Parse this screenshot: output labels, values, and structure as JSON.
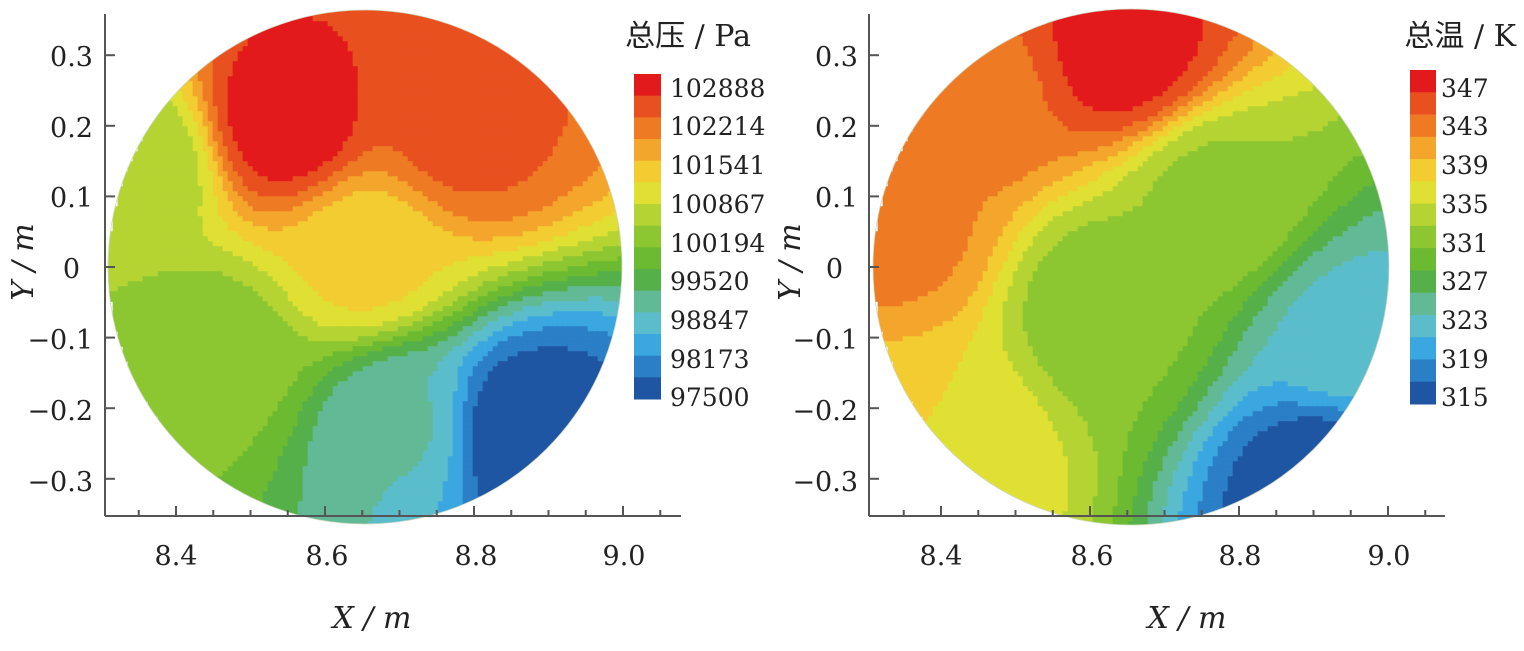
{
  "chart_data": [
    {
      "type": "heatmap",
      "subtype": "filled-contour on circular section",
      "colorbar": {
        "title": "总压 / Pa",
        "ticks": [
          102888,
          102214,
          101541,
          100867,
          100194,
          99520,
          98847,
          98173,
          97500
        ],
        "min": 97500,
        "max": 103000,
        "colors_high_to_low": [
          "#e31a1c",
          "#e8511f",
          "#ef7a24",
          "#f4a52b",
          "#f2cc31",
          "#dfe033",
          "#b5d433",
          "#8cc631",
          "#6cba31",
          "#56b04a",
          "#62b996",
          "#5bbdcc",
          "#3aa7e1",
          "#2a7fc7",
          "#1f56a3"
        ]
      },
      "xlabel": "X / m",
      "ylabel": "Y / m",
      "xticks": [
        "8.4",
        "8.6",
        "8.8",
        "9.0"
      ],
      "yticks": [
        "0.3",
        "0.2",
        "0.1",
        "0",
        "−0.1",
        "−0.2",
        "−0.3"
      ],
      "xlim": [
        8.3,
        9.07
      ],
      "ylim": [
        -0.35,
        0.36
      ],
      "domain_circle": {
        "center": [
          8.665,
          0.0
        ],
        "radius": 0.35
      },
      "features": [
        {
          "kind": "high",
          "x": 8.54,
          "y": 0.21,
          "value": 102888
        },
        {
          "kind": "high-band",
          "x": 8.78,
          "y": 0.2,
          "value": 102400
        },
        {
          "kind": "low",
          "x": 8.86,
          "y": -0.23,
          "value": 97500
        },
        {
          "kind": "mid-low",
          "x": 8.7,
          "y": -0.22,
          "value": 99000
        },
        {
          "kind": "mid",
          "x": 8.45,
          "y": -0.12,
          "value": 100200
        },
        {
          "kind": "band",
          "x": 8.65,
          "y": 0.02,
          "value": 101300
        },
        {
          "kind": "edge-low",
          "x": 8.35,
          "y": 0.15,
          "value": 100500
        }
      ],
      "grid": false
    },
    {
      "type": "heatmap",
      "subtype": "filled-contour on circular section",
      "colorbar": {
        "title": "总温 / K",
        "ticks": [
          347,
          343,
          339,
          335,
          331,
          327,
          323,
          319,
          315
        ],
        "min": 315,
        "max": 348,
        "colors_high_to_low": [
          "#e31a1c",
          "#e8511f",
          "#ef7a24",
          "#f4a52b",
          "#f2cc31",
          "#dfe033",
          "#b5d433",
          "#8cc631",
          "#6cba31",
          "#56b04a",
          "#62b996",
          "#5bbdcc",
          "#3aa7e1",
          "#2a7fc7",
          "#1f56a3"
        ]
      },
      "xlabel": "X / m",
      "ylabel": "Y / m",
      "xticks": [
        "8.4",
        "8.6",
        "8.8",
        "9.0"
      ],
      "yticks": [
        "0.3",
        "0.2",
        "0.1",
        "0",
        "−0.1",
        "−0.2",
        "−0.3"
      ],
      "xlim": [
        8.3,
        9.07
      ],
      "ylim": [
        -0.35,
        0.36
      ],
      "domain_circle": {
        "center": [
          8.665,
          0.0
        ],
        "radius": 0.35
      },
      "features": [
        {
          "kind": "high",
          "x": 8.64,
          "y": 0.31,
          "value": 347
        },
        {
          "kind": "high-band",
          "x": 8.45,
          "y": 0.25,
          "value": 343
        },
        {
          "kind": "high-edge",
          "x": 8.34,
          "y": 0.06,
          "value": 342
        },
        {
          "kind": "low",
          "x": 8.92,
          "y": -0.3,
          "value": 315
        },
        {
          "kind": "mid-low",
          "x": 8.95,
          "y": -0.1,
          "value": 323
        },
        {
          "kind": "mid",
          "x": 8.62,
          "y": -0.05,
          "value": 331
        },
        {
          "kind": "mid",
          "x": 8.76,
          "y": 0.1,
          "value": 332
        },
        {
          "kind": "edge-warm",
          "x": 8.4,
          "y": -0.25,
          "value": 337
        }
      ],
      "grid": false
    }
  ]
}
